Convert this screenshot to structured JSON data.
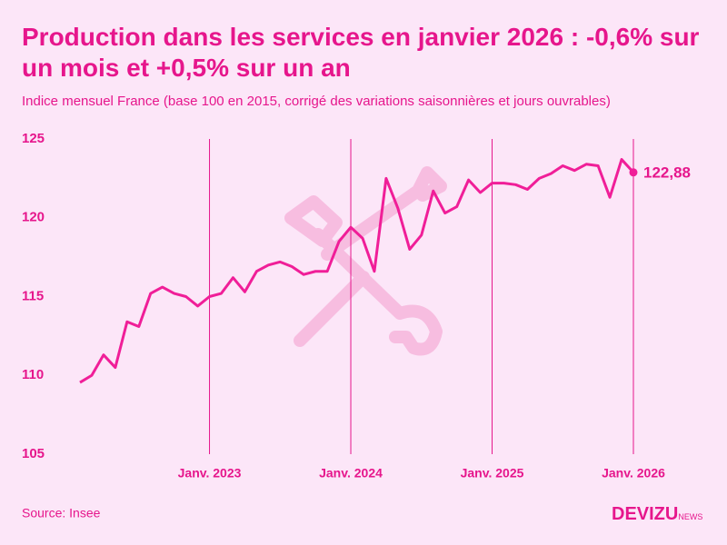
{
  "chart_data": {
    "type": "line",
    "title": "Production dans les services en janvier 2026 : -0,6% sur un mois et +0,5% sur un an",
    "subtitle": "Indice mensuel France (base 100 en 2015, corrigé des variations saisonnières et jours ouvrables)",
    "categories": [
      null,
      null,
      null,
      null,
      null,
      null,
      null,
      null,
      null,
      null,
      null,
      "Janv. 2023",
      null,
      null,
      null,
      null,
      null,
      null,
      null,
      null,
      null,
      null,
      null,
      "Janv. 2024",
      null,
      null,
      null,
      null,
      null,
      null,
      null,
      null,
      null,
      null,
      null,
      "Janv. 2025",
      null,
      null,
      null,
      null,
      null,
      null,
      null,
      null,
      null,
      null,
      null,
      "Janv. 2026"
    ],
    "values": [
      109.55,
      110.0,
      111.3,
      110.5,
      113.4,
      113.1,
      115.2,
      115.6,
      115.2,
      115.0,
      114.4,
      115.0,
      115.2,
      116.2,
      115.3,
      116.6,
      117.0,
      117.2,
      116.9,
      116.4,
      116.6,
      116.6,
      118.5,
      119.4,
      118.7,
      116.6,
      122.5,
      120.6,
      118.0,
      118.9,
      121.7,
      120.3,
      120.7,
      122.4,
      121.6,
      122.2,
      122.2,
      122.1,
      121.8,
      122.5,
      122.8,
      123.3,
      123.0,
      123.4,
      123.3,
      121.3,
      123.7,
      122.88
    ],
    "value_labels": [
      null,
      null,
      null,
      null,
      null,
      null,
      null,
      null,
      null,
      null,
      null,
      null,
      null,
      null,
      null,
      null,
      null,
      null,
      null,
      null,
      null,
      null,
      null,
      null,
      null,
      null,
      null,
      null,
      null,
      null,
      null,
      null,
      null,
      null,
      null,
      null,
      null,
      null,
      null,
      null,
      null,
      null,
      null,
      null,
      null,
      null,
      null,
      "122,88"
    ],
    "color": "#f01e98",
    "ylim": [
      105,
      125
    ],
    "yticks": [
      105,
      110,
      115,
      120,
      125
    ],
    "source": "Source: Insee",
    "logo": "DEVIZU",
    "logo_suffix": "NEWS"
  }
}
